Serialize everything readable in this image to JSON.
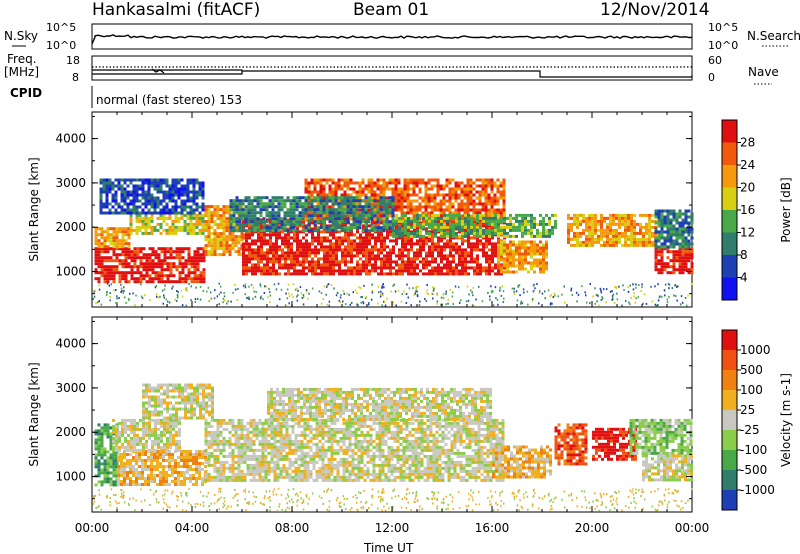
{
  "header": {
    "station": "Hankasalmi (fitACF)",
    "beam": "Beam 01",
    "date": "12/Nov/2014"
  },
  "strip_noise": {
    "left_label": "N.Sky",
    "right_label": "N.Search",
    "left_ticks": [
      "10^5",
      "10^0"
    ],
    "right_ticks": [
      "10^5",
      "10^0"
    ]
  },
  "strip_freq": {
    "left_label_1": "Freq.",
    "left_label_2": "[MHz]",
    "right_label": "Nave",
    "left_ticks": [
      "18",
      "8"
    ],
    "right_ticks": [
      "60",
      "0"
    ]
  },
  "strip_cpid": {
    "label": "CPID",
    "mode_text": "normal (fast stereo) 153"
  },
  "x_axis": {
    "title": "Time UT",
    "ticks": [
      "00:00",
      "04:00",
      "08:00",
      "12:00",
      "16:00",
      "20:00",
      "00:00"
    ]
  },
  "chart_data": [
    {
      "type": "heatmap",
      "quantity": "Power",
      "ylabel": "Slant Range [km]",
      "yticks": [
        1000,
        2000,
        3000,
        4000
      ],
      "ylim": [
        200,
        4600
      ],
      "xlim_hours": [
        0,
        24
      ],
      "colorbar_label": "Power [dB]",
      "colorbar_ticks": [
        "4",
        "8",
        "12",
        "16",
        "20",
        "24",
        "28"
      ],
      "colors": [
        "#1010f0",
        "#1f3fb4",
        "#2f7d6a",
        "#49a949",
        "#d8cf12",
        "#f59a0d",
        "#f05a0a",
        "#e01010"
      ],
      "regions": [
        {
          "t": [
            0.1,
            4.5
          ],
          "r": [
            780,
            1550
          ],
          "level": 7
        },
        {
          "t": [
            0.1,
            1.5
          ],
          "r": [
            1550,
            2000
          ],
          "level": 5
        },
        {
          "t": [
            1.5,
            4.5
          ],
          "r": [
            1850,
            2300
          ],
          "level": 4
        },
        {
          "t": [
            0.3,
            4.5
          ],
          "r": [
            2300,
            3100
          ],
          "level": 1
        },
        {
          "t": [
            4.5,
            6.0
          ],
          "r": [
            1400,
            2500
          ],
          "level": 5
        },
        {
          "t": [
            6.0,
            16.5
          ],
          "r": [
            950,
            2200
          ],
          "level": 7
        },
        {
          "t": [
            8.5,
            16.5
          ],
          "r": [
            2200,
            3100
          ],
          "level": 6
        },
        {
          "t": [
            5.5,
            12.0
          ],
          "r": [
            1900,
            2700
          ],
          "level": 2
        },
        {
          "t": [
            12.0,
            18.5
          ],
          "r": [
            1800,
            2300
          ],
          "level": 3
        },
        {
          "t": [
            16.2,
            18.2
          ],
          "r": [
            1000,
            1700
          ],
          "level": 5
        },
        {
          "t": [
            19.0,
            22.5
          ],
          "r": [
            1600,
            2300
          ],
          "level": 5
        },
        {
          "t": [
            22.5,
            24.0
          ],
          "r": [
            950,
            1550
          ],
          "level": 7
        },
        {
          "t": [
            22.5,
            24.0
          ],
          "r": [
            1550,
            2400
          ],
          "level": 2
        }
      ]
    },
    {
      "type": "heatmap",
      "quantity": "Velocity",
      "ylabel": "Slant Range [km]",
      "yticks": [
        1000,
        2000,
        3000,
        4000
      ],
      "ylim": [
        200,
        4600
      ],
      "xlim_hours": [
        0,
        24
      ],
      "colorbar_label": "Velocity [m s-1]",
      "colorbar_ticks": [
        "1000",
        "500",
        "100",
        "25",
        "-25",
        "-100",
        "-500",
        "-1000"
      ],
      "colors": [
        "#1f3fb4",
        "#2f7d6a",
        "#49a949",
        "#8acd4a",
        "#c8c8c0",
        "#f0b020",
        "#f08010",
        "#f05010",
        "#e01010"
      ],
      "regions": [
        {
          "t": [
            0.1,
            1.0
          ],
          "r": [
            800,
            2200
          ],
          "level": 2
        },
        {
          "t": [
            1.0,
            4.5
          ],
          "r": [
            800,
            1600
          ],
          "level": 5
        },
        {
          "t": [
            0.8,
            3.5
          ],
          "r": [
            1600,
            2300
          ],
          "level": 4
        },
        {
          "t": [
            2.0,
            4.8
          ],
          "r": [
            2300,
            3100
          ],
          "level": 4
        },
        {
          "t": [
            4.5,
            16.5
          ],
          "r": [
            900,
            2300
          ],
          "level": 4
        },
        {
          "t": [
            7.0,
            16.0
          ],
          "r": [
            2300,
            3000
          ],
          "level": 4
        },
        {
          "t": [
            16.0,
            18.3
          ],
          "r": [
            1000,
            1700
          ],
          "level": 5
        },
        {
          "t": [
            18.5,
            19.8
          ],
          "r": [
            1300,
            2200
          ],
          "level": 7
        },
        {
          "t": [
            20.0,
            21.8
          ],
          "r": [
            1400,
            2100
          ],
          "level": 8
        },
        {
          "t": [
            21.5,
            24.0
          ],
          "r": [
            1500,
            2300
          ],
          "level": 3
        },
        {
          "t": [
            22.0,
            24.0
          ],
          "r": [
            900,
            1500
          ],
          "level": 4
        }
      ]
    }
  ]
}
